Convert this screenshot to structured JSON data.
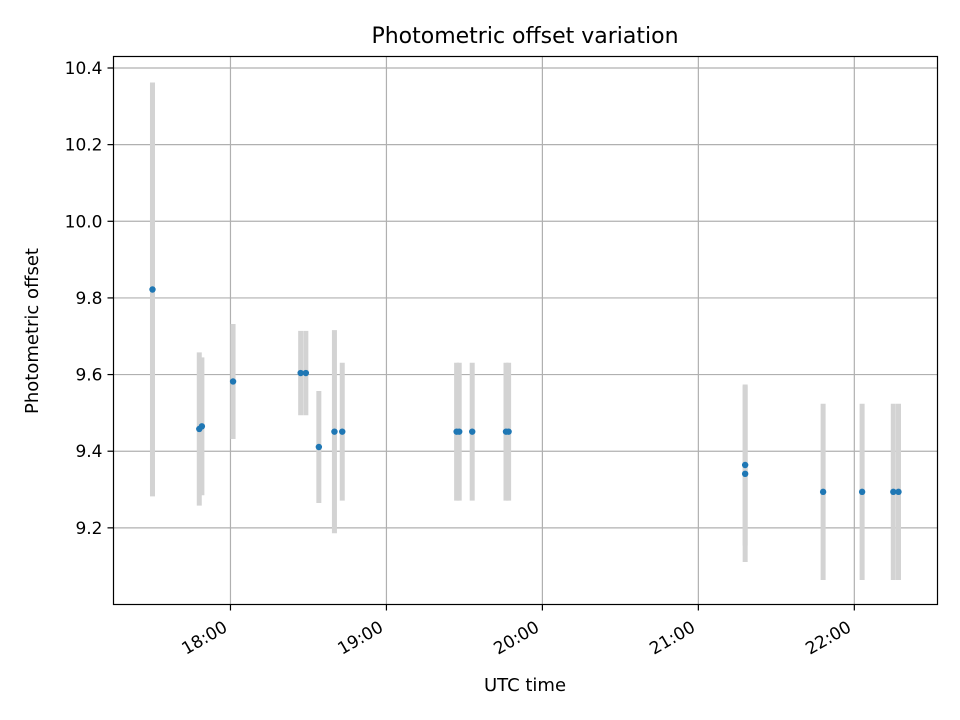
{
  "chart_data": {
    "type": "scatter",
    "title": "Photometric offset variation",
    "xlabel": "UTC time",
    "ylabel": "Photometric offset",
    "x_unit": "time (HH:MM UTC)",
    "xlim": [
      "17:15",
      "22:32"
    ],
    "ylim": [
      9.0,
      10.43
    ],
    "x_ticks": [
      "18:00",
      "19:00",
      "20:00",
      "21:00",
      "22:00"
    ],
    "y_ticks": [
      9.2,
      9.4,
      9.6,
      9.8,
      10.0,
      10.2,
      10.4
    ],
    "grid": true,
    "point_color": "#1f77b4",
    "errorbar_color": "#d3d3d3",
    "series": [
      {
        "points": [
          {
            "t": "17:30",
            "y": 9.822,
            "err": 0.54
          },
          {
            "t": "17:48",
            "y": 9.458,
            "err": 0.2
          },
          {
            "t": "17:49",
            "y": 9.465,
            "err": 0.18
          },
          {
            "t": "18:01",
            "y": 9.582,
            "err": 0.15
          },
          {
            "t": "18:27",
            "y": 9.604,
            "err": 0.11
          },
          {
            "t": "18:29",
            "y": 9.604,
            "err": 0.11
          },
          {
            "t": "18:34",
            "y": 9.411,
            "err": 0.146
          },
          {
            "t": "18:40",
            "y": 9.451,
            "err": 0.265
          },
          {
            "t": "18:43",
            "y": 9.451,
            "err": 0.18
          },
          {
            "t": "19:27",
            "y": 9.451,
            "err": 0.18
          },
          {
            "t": "19:28",
            "y": 9.451,
            "err": 0.18
          },
          {
            "t": "19:33",
            "y": 9.451,
            "err": 0.18
          },
          {
            "t": "19:46",
            "y": 9.451,
            "err": 0.18
          },
          {
            "t": "19:47",
            "y": 9.451,
            "err": 0.18
          },
          {
            "t": "21:18",
            "y": 9.364,
            "err": 0.21
          },
          {
            "t": "21:18",
            "y": 9.341,
            "err": 0.23
          },
          {
            "t": "21:48",
            "y": 9.294,
            "err": 0.23
          },
          {
            "t": "22:03",
            "y": 9.294,
            "err": 0.23
          },
          {
            "t": "22:15",
            "y": 9.294,
            "err": 0.23
          },
          {
            "t": "22:17",
            "y": 9.294,
            "err": 0.23
          }
        ]
      }
    ]
  }
}
